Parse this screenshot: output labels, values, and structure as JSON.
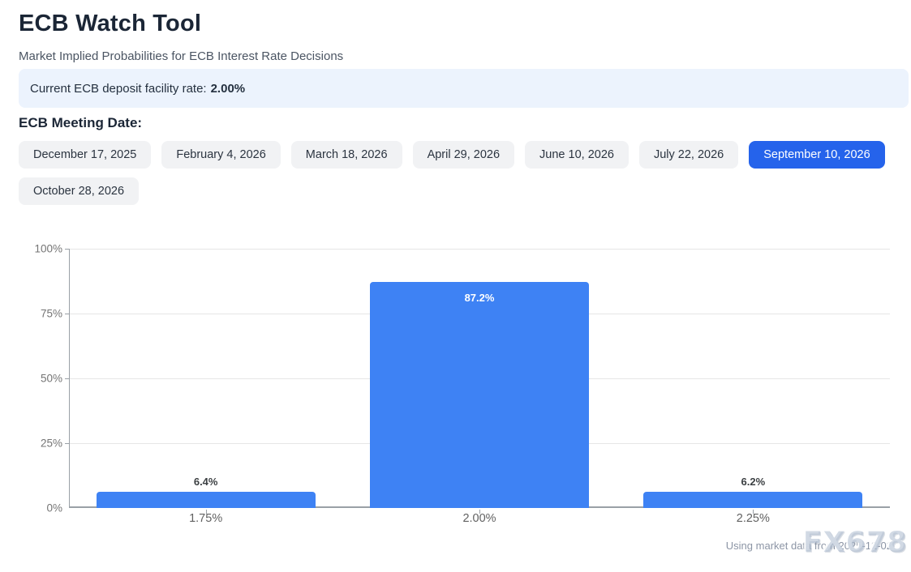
{
  "header": {
    "title": "ECB Watch Tool",
    "subtitle": "Market Implied Probabilities for ECB Interest Rate Decisions"
  },
  "info_bar": {
    "label": "Current ECB deposit facility rate:",
    "value": "2.00%"
  },
  "meeting": {
    "heading": "ECB Meeting Date:",
    "dates": [
      {
        "label": "December 17, 2025",
        "selected": false
      },
      {
        "label": "February 4, 2026",
        "selected": false
      },
      {
        "label": "March 18, 2026",
        "selected": false
      },
      {
        "label": "April 29, 2026",
        "selected": false
      },
      {
        "label": "June 10, 2026",
        "selected": false
      },
      {
        "label": "July 22, 2026",
        "selected": false
      },
      {
        "label": "September 10, 2026",
        "selected": true
      },
      {
        "label": "October 28, 2026",
        "selected": false
      }
    ]
  },
  "chart_data": {
    "type": "bar",
    "title": "",
    "xlabel": "",
    "ylabel": "",
    "categories": [
      "1.75%",
      "2.00%",
      "2.25%"
    ],
    "values": [
      6.4,
      87.2,
      6.2
    ],
    "value_labels": [
      "6.4%",
      "87.2%",
      "6.2%"
    ],
    "y_ticks": [
      0,
      25,
      50,
      75,
      100
    ],
    "y_tick_labels": [
      "0%",
      "25%",
      "50%",
      "75%",
      "100%"
    ],
    "ylim": [
      0,
      100
    ],
    "grid": true,
    "legend": "none",
    "bar_color": "#3e82f4",
    "label_color_outside": "#3c4043",
    "label_color_inside": "#ffffff"
  },
  "footer": {
    "note": "Using market data from 2025-12-02",
    "watermark": "FX678"
  },
  "colors": {
    "accent_blue": "#2563eb",
    "bar_blue": "#3e82f4",
    "info_bar_bg": "#ecf3fd",
    "button_bg": "#f1f2f4",
    "heading_text": "#1b2636",
    "axis_line": "#9aa0a6",
    "gridline": "#e6e6e6",
    "axis_label": "#757575"
  }
}
